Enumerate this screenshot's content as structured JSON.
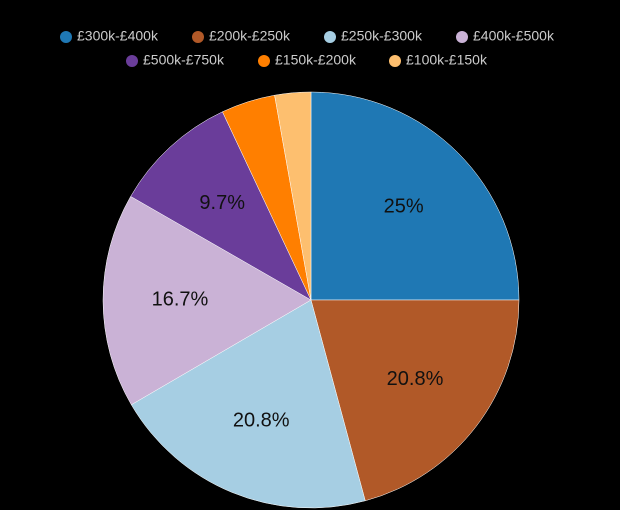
{
  "chart_data": {
    "type": "pie",
    "categories": [
      "£300k-£400k",
      "£200k-£250k",
      "£250k-£300k",
      "£400k-£500k",
      "£500k-£750k",
      "£150k-£200k",
      "£100k-£150k"
    ],
    "values": [
      25,
      20.8,
      20.8,
      16.7,
      9.7,
      4.2,
      2.8
    ],
    "value_labels": [
      "25%",
      "20.8%",
      "20.8%",
      "16.7%",
      "9.7%",
      null,
      null
    ],
    "colors": [
      "#1f78b4",
      "#b15928",
      "#a6cee3",
      "#cab2d6",
      "#6a3d9a",
      "#ff7f00",
      "#fdbf6f"
    ]
  }
}
